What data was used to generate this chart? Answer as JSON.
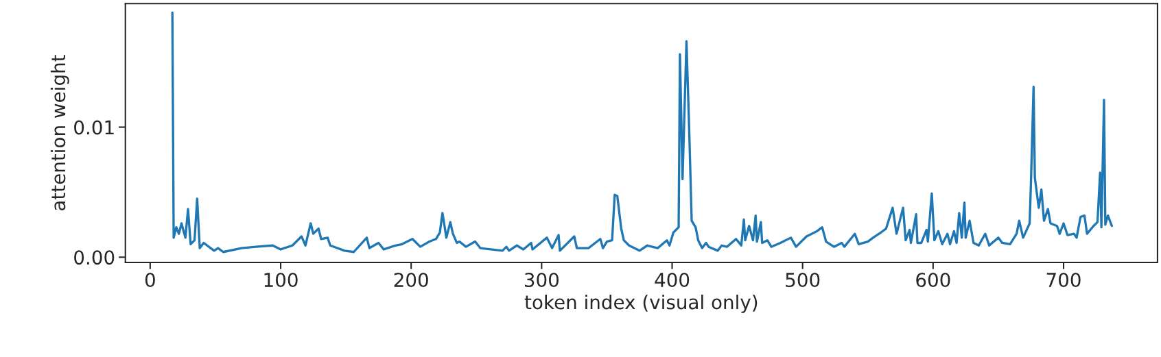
{
  "chart_data": {
    "type": "line",
    "xlabel": "token index (visual only)",
    "ylabel": "attention weight",
    "x": [
      17,
      18,
      20,
      22,
      24,
      27,
      29,
      31,
      34,
      36,
      38,
      41,
      49,
      52,
      56,
      70,
      81,
      94,
      100,
      109,
      116,
      119,
      123,
      125,
      129,
      131,
      136,
      138,
      149,
      156,
      166,
      168,
      175,
      179,
      188,
      193,
      201,
      207,
      214,
      219,
      222,
      224,
      227,
      230,
      232,
      235,
      237,
      242,
      249,
      253,
      270,
      273,
      275,
      281,
      286,
      292,
      293,
      304,
      308,
      313,
      314,
      325,
      327,
      336,
      345,
      347,
      350,
      354,
      356,
      358,
      361,
      363,
      367,
      375,
      381,
      389,
      396,
      398,
      401,
      405,
      406,
      408,
      411,
      413,
      415,
      418,
      420,
      423,
      426,
      428,
      435,
      438,
      442,
      449,
      453,
      455,
      456,
      459,
      462,
      464,
      465,
      468,
      469,
      473,
      476,
      483,
      491,
      495,
      503,
      507,
      511,
      515,
      518,
      524,
      530,
      532,
      540,
      543,
      550,
      554,
      560,
      564,
      569,
      572,
      577,
      579,
      582,
      583,
      587,
      588,
      591,
      595,
      596,
      599,
      601,
      604,
      607,
      611,
      613,
      616,
      618,
      620,
      622,
      624,
      625,
      628,
      631,
      635,
      640,
      643,
      650,
      653,
      659,
      664,
      666,
      669,
      674,
      675,
      677,
      678,
      681,
      683,
      685,
      688,
      690,
      695,
      697,
      700,
      703,
      708,
      710,
      713,
      716,
      718,
      723,
      726,
      728,
      729,
      731,
      732,
      734,
      737
    ],
    "series": [
      {
        "color": "#1f77b4",
        "values": [
          0.0188,
          0.0015,
          0.0023,
          0.0018,
          0.0026,
          0.0015,
          0.0037,
          0.001,
          0.0013,
          0.0045,
          0.0007,
          0.0011,
          0.0005,
          0.0007,
          0.0004,
          0.0007,
          0.0008,
          0.0009,
          0.0006,
          0.0009,
          0.0016,
          0.0009,
          0.0026,
          0.0018,
          0.0022,
          0.0014,
          0.0015,
          0.0009,
          0.0005,
          0.0004,
          0.0015,
          0.0007,
          0.0011,
          0.0006,
          0.0009,
          0.001,
          0.0014,
          0.0008,
          0.0012,
          0.0014,
          0.0019,
          0.0034,
          0.0015,
          0.0027,
          0.0018,
          0.0011,
          0.0012,
          0.0008,
          0.0012,
          0.0007,
          0.0005,
          0.0008,
          0.0005,
          0.0009,
          0.0006,
          0.0011,
          0.0006,
          0.0015,
          0.0007,
          0.0017,
          0.0005,
          0.0016,
          0.0007,
          0.0007,
          0.0014,
          0.0007,
          0.0012,
          0.0013,
          0.0048,
          0.0047,
          0.0022,
          0.0013,
          0.0009,
          0.0005,
          0.0009,
          0.0007,
          0.0013,
          0.0009,
          0.0019,
          0.0023,
          0.0156,
          0.006,
          0.0166,
          0.0101,
          0.0028,
          0.0023,
          0.0013,
          0.0007,
          0.0011,
          0.0008,
          0.0005,
          0.0009,
          0.0008,
          0.0014,
          0.0009,
          0.0029,
          0.0013,
          0.0024,
          0.0013,
          0.0032,
          0.0012,
          0.0027,
          0.0011,
          0.0013,
          0.0008,
          0.0011,
          0.0015,
          0.0008,
          0.0016,
          0.0018,
          0.002,
          0.0023,
          0.0012,
          0.0008,
          0.0011,
          0.0008,
          0.0018,
          0.001,
          0.0012,
          0.0015,
          0.0019,
          0.0022,
          0.0038,
          0.0018,
          0.0038,
          0.0013,
          0.0021,
          0.0011,
          0.0033,
          0.0011,
          0.0011,
          0.0021,
          0.0012,
          0.0049,
          0.0013,
          0.002,
          0.001,
          0.0018,
          0.001,
          0.002,
          0.0011,
          0.0034,
          0.0015,
          0.0042,
          0.0015,
          0.0028,
          0.0011,
          0.0009,
          0.0018,
          0.0009,
          0.0015,
          0.0011,
          0.001,
          0.0018,
          0.0028,
          0.0015,
          0.0026,
          0.0057,
          0.0131,
          0.0061,
          0.0038,
          0.0052,
          0.0028,
          0.0037,
          0.0026,
          0.0024,
          0.0018,
          0.0026,
          0.0017,
          0.0018,
          0.0015,
          0.0031,
          0.0032,
          0.0018,
          0.0024,
          0.0027,
          0.0065,
          0.0023,
          0.0121,
          0.0025,
          0.0032,
          0.0024
        ]
      }
    ],
    "xlim": [
      -19,
      772
    ],
    "ylim": [
      -0.0004,
      0.0195
    ],
    "xticks": [
      0,
      100,
      200,
      300,
      400,
      500,
      600,
      700
    ],
    "yticks": [
      {
        "value": 0,
        "label": "0.00"
      },
      {
        "value": 0.01,
        "label": "0.01"
      }
    ],
    "grid": false,
    "legend": false,
    "marker": "none",
    "line_style": "solid"
  }
}
